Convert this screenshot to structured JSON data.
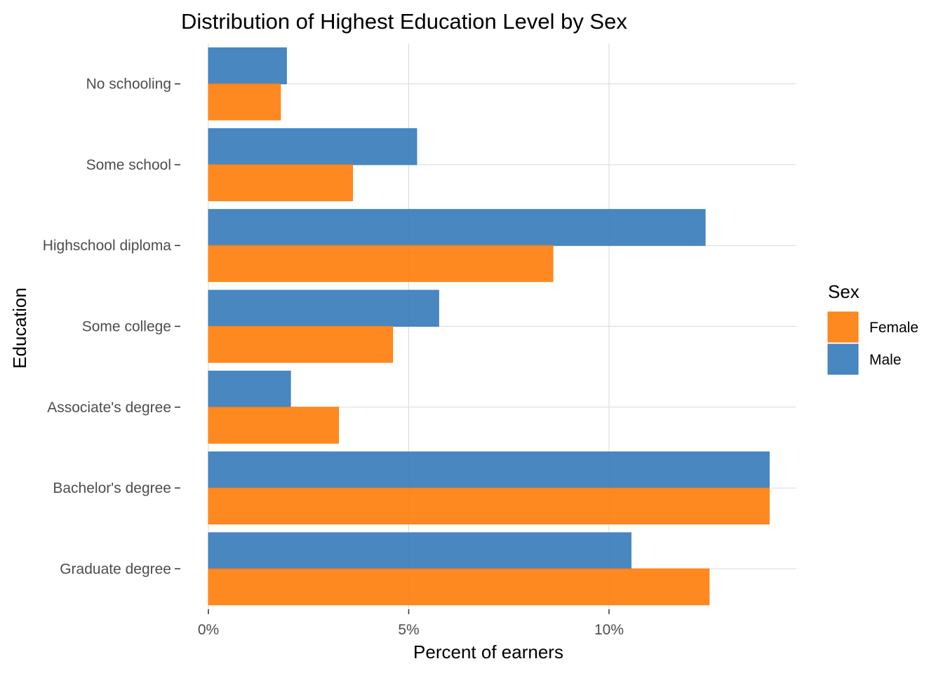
{
  "chart_data": {
    "type": "bar",
    "orientation": "horizontal",
    "title": "Distribution of Highest Education Level by Sex",
    "xlabel": "Percent of earners",
    "ylabel": "Education",
    "categories": [
      "No schooling",
      "Some school",
      "Highschool diploma",
      "Some college",
      "Associate's degree",
      "Bachelor's degree",
      "Graduate degree"
    ],
    "series": [
      {
        "name": "Female",
        "color": "#FF7F0E",
        "values": [
          1.8,
          3.6,
          8.6,
          4.6,
          3.25,
          14.0,
          12.5
        ]
      },
      {
        "name": "Male",
        "color": "#3A7DBC",
        "values": [
          1.95,
          5.2,
          12.4,
          5.75,
          2.05,
          14.0,
          10.55
        ]
      }
    ],
    "xlim": [
      0,
      14.7
    ],
    "x_ticks": [
      {
        "value": 0,
        "label": "0%"
      },
      {
        "value": 5,
        "label": "5%"
      },
      {
        "value": 10,
        "label": "10%"
      }
    ],
    "grid": true,
    "legend": {
      "title": "Sex",
      "position": "right",
      "entries": [
        "Female",
        "Male"
      ]
    }
  }
}
